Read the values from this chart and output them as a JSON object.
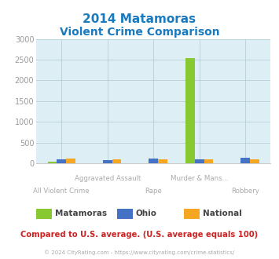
{
  "title_line1": "2014 Matamoras",
  "title_line2": "Violent Crime Comparison",
  "title_color": "#1a7abf",
  "categories": [
    "All Violent Crime",
    "Aggravated Assault",
    "Rape",
    "Murder & Mans...",
    "Robbery"
  ],
  "series": {
    "Matamoras": [
      35,
      0,
      0,
      2533,
      0
    ],
    "Ohio": [
      90,
      65,
      115,
      90,
      130
    ],
    "National": [
      105,
      90,
      90,
      90,
      85
    ]
  },
  "colors": {
    "Matamoras": "#88c932",
    "Ohio": "#4472c4",
    "National": "#f5a623"
  },
  "ylim": [
    0,
    3000
  ],
  "yticks": [
    0,
    500,
    1000,
    1500,
    2000,
    2500,
    3000
  ],
  "background_color": "#ddeef5",
  "grid_color": "#b8cfd8",
  "footer": "© 2024 CityRating.com - https://www.cityrating.com/crime-statistics/",
  "footnote": "Compared to U.S. average. (U.S. average equals 100)",
  "top_labels": [
    "",
    "Aggravated Assault",
    "",
    "Murder & Mans...",
    ""
  ],
  "bottom_labels": [
    "All Violent Crime",
    "",
    "Rape",
    "",
    "Robbery"
  ],
  "label_color": "#aaaaaa",
  "footnote_color": "#cc2222",
  "footer_color": "#aaaaaa"
}
